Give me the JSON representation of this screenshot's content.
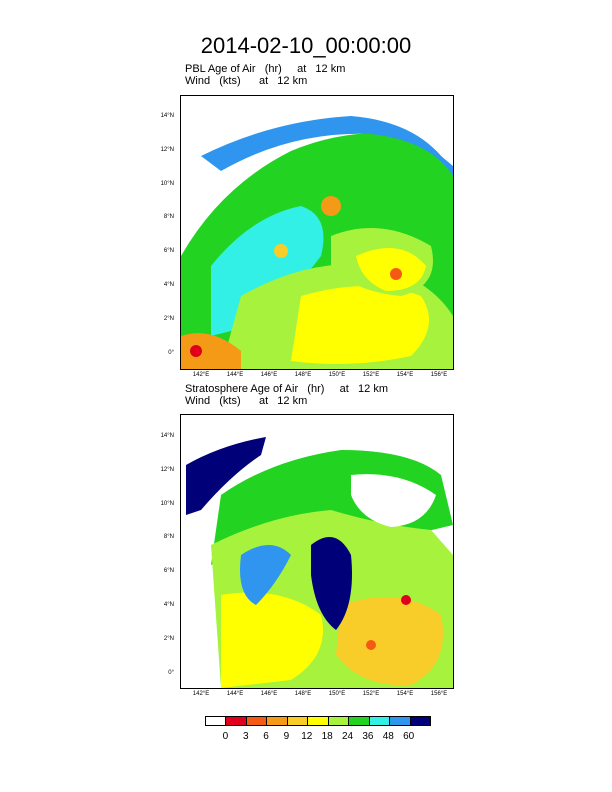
{
  "title": "2014-02-10_00:00:00",
  "panels": [
    {
      "line1": "PBL Age of Air   (hr)     at   12 km",
      "line2": "Wind   (kts)      at   12 km"
    },
    {
      "line1": "Stratosphere Age of Air   (hr)     at   12 km",
      "line2": "Wind   (kts)      at   12 km"
    }
  ],
  "lat_labels": [
    "14°N",
    "12°N",
    "10°N",
    "8°N",
    "6°N",
    "4°N",
    "2°N",
    "0°"
  ],
  "lon_labels": [
    "142°E",
    "144°E",
    "146°E",
    "148°E",
    "150°E",
    "152°E",
    "154°E",
    "156°E"
  ],
  "legend": {
    "colors": [
      "#ffffff",
      "#e0001c",
      "#f55a14",
      "#f59a16",
      "#f8cd2a",
      "#ffff00",
      "#a6f23c",
      "#22d322",
      "#32f0e6",
      "#2f95ef",
      "#000078"
    ],
    "labels": [
      "0",
      "3",
      "6",
      "9",
      "12",
      "18",
      "24",
      "36",
      "48",
      "60"
    ]
  }
}
